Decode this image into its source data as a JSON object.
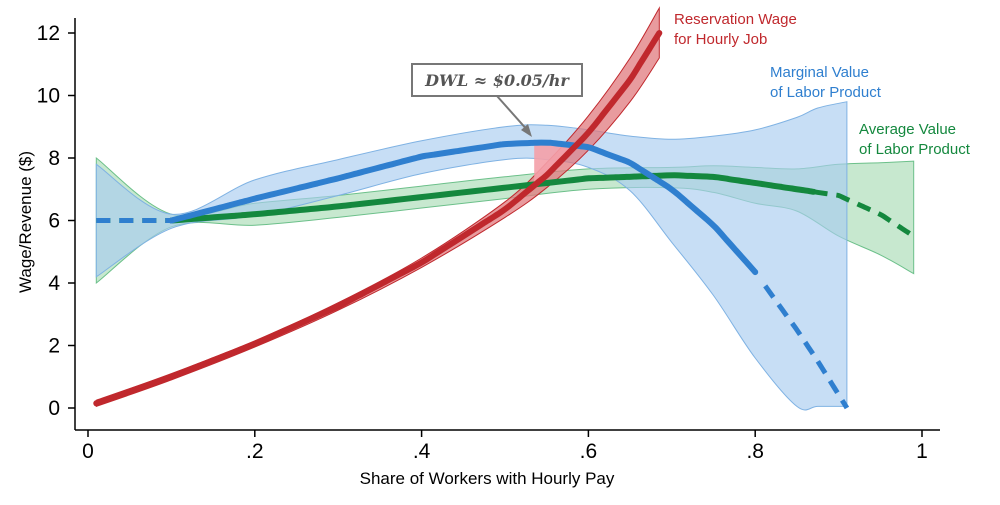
{
  "chart_data": {
    "type": "line",
    "xlabel": "Share of Workers with Hourly Pay",
    "ylabel": "Wage/Revenue ($)",
    "xlim": [
      0,
      1
    ],
    "ylim": [
      0,
      12
    ],
    "x_ticks": [
      {
        "value": 0,
        "label": "0"
      },
      {
        "value": 0.2,
        "label": ".2"
      },
      {
        "value": 0.4,
        "label": ".4"
      },
      {
        "value": 0.6,
        "label": ".6"
      },
      {
        "value": 0.8,
        "label": ".8"
      },
      {
        "value": 1,
        "label": "1"
      }
    ],
    "y_ticks": [
      {
        "value": 0,
        "label": "0"
      },
      {
        "value": 2,
        "label": "2"
      },
      {
        "value": 4,
        "label": "4"
      },
      {
        "value": 6,
        "label": "6"
      },
      {
        "value": 8,
        "label": "8"
      },
      {
        "value": 10,
        "label": "10"
      },
      {
        "value": 12,
        "label": "12"
      }
    ],
    "grid": false,
    "series": [
      {
        "name": "Reservation Wage for Hourly Job",
        "label_lines": [
          "Reservation Wage",
          "for Hourly Job"
        ],
        "color": "#c0282d",
        "band_color": "#e07a7e",
        "x": [
          0.01,
          0.1,
          0.2,
          0.3,
          0.4,
          0.5,
          0.55,
          0.6,
          0.65,
          0.685
        ],
        "y": [
          0.15,
          1.0,
          2.05,
          3.25,
          4.65,
          6.35,
          7.45,
          8.8,
          10.5,
          12.0
        ],
        "ci_half_width": [
          0.1,
          0.1,
          0.1,
          0.12,
          0.15,
          0.25,
          0.4,
          0.55,
          0.7,
          0.8
        ]
      },
      {
        "name": "Marginal Value of Labor Product",
        "label_lines": [
          "Marginal Value",
          "of Labor Product"
        ],
        "color": "#2f7fcf",
        "band_color": "#a9cdf0",
        "x": [
          0.01,
          0.1,
          0.2,
          0.3,
          0.4,
          0.5,
          0.55,
          0.6,
          0.65,
          0.7,
          0.75,
          0.8,
          0.85,
          0.875,
          0.91
        ],
        "y": [
          6.0,
          6.0,
          6.7,
          7.35,
          8.05,
          8.45,
          8.5,
          8.35,
          7.85,
          7.0,
          5.85,
          4.35,
          2.5,
          1.5,
          0.0
        ],
        "ci_upper": [
          7.8,
          6.2,
          7.3,
          7.95,
          8.55,
          9.0,
          9.05,
          8.9,
          8.7,
          8.6,
          8.7,
          8.9,
          9.3,
          9.6,
          9.8
        ],
        "ci_lower": [
          4.2,
          5.75,
          6.15,
          6.8,
          7.5,
          7.95,
          7.95,
          7.7,
          6.95,
          5.3,
          3.6,
          1.6,
          0.05,
          0.05,
          0.05
        ],
        "solid_until_x": 0.8,
        "dashed_from_x": 0.81,
        "dashed_start_x": 0.1
      },
      {
        "name": "Average Value of Labor Product",
        "label_lines": [
          "Average Value",
          "of Labor Product"
        ],
        "color": "#14883e",
        "band_color": "#a9dcb6",
        "x": [
          0.01,
          0.1,
          0.2,
          0.3,
          0.4,
          0.5,
          0.6,
          0.7,
          0.75,
          0.8,
          0.85,
          0.9,
          0.95,
          0.99
        ],
        "y": [
          6.0,
          6.0,
          6.2,
          6.45,
          6.75,
          7.05,
          7.35,
          7.45,
          7.4,
          7.2,
          7.0,
          6.8,
          6.2,
          5.5
        ],
        "ci_upper": [
          8.0,
          6.2,
          6.55,
          6.8,
          7.1,
          7.4,
          7.65,
          7.7,
          7.75,
          7.7,
          7.65,
          7.8,
          7.85,
          7.9
        ],
        "ci_lower": [
          4.0,
          5.8,
          5.85,
          6.1,
          6.4,
          6.7,
          7.0,
          7.05,
          6.9,
          6.55,
          6.3,
          5.5,
          4.9,
          4.3
        ],
        "solid_until_x": 0.87,
        "dashed_start_x": 0.1
      }
    ],
    "annotations": [
      {
        "text": "DWL ≈ $0.05/hr",
        "points_to_x": 0.55,
        "points_to_y": 8.5
      },
      {
        "type": "shaded_region",
        "description": "DWL triangle between reservation wage and marginal value",
        "x": [
          0.535,
          0.59
        ],
        "color": "#f4a0a8"
      }
    ]
  }
}
